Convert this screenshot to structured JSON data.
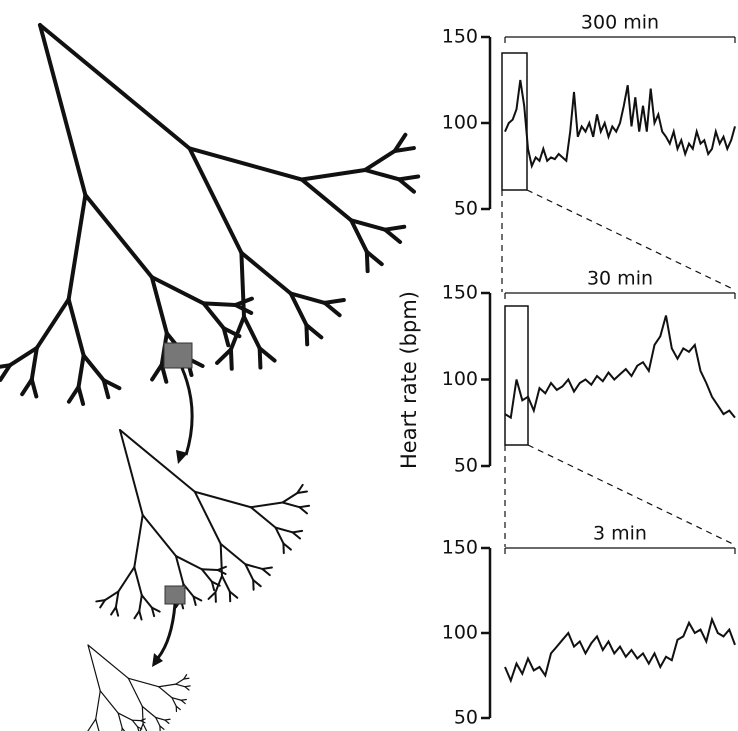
{
  "chart_data": [
    {
      "type": "line",
      "title": "300 min",
      "color": "#111",
      "x": [
        0,
        5,
        10,
        15,
        20,
        25,
        30,
        35,
        40,
        45,
        50,
        55,
        60,
        65,
        70,
        75,
        80,
        85,
        90,
        95,
        100,
        105,
        110,
        115,
        120,
        125,
        130,
        135,
        140,
        145,
        150,
        155,
        160,
        165,
        170,
        175,
        180,
        185,
        190,
        195,
        200,
        205,
        210,
        215,
        220,
        225,
        230,
        235,
        240,
        245,
        250,
        255,
        260,
        265,
        270,
        275,
        280,
        285,
        290,
        295,
        300
      ],
      "values": [
        95,
        100,
        102,
        108,
        125,
        110,
        85,
        75,
        80,
        78,
        85,
        78,
        80,
        79,
        82,
        80,
        78,
        95,
        118,
        92,
        98,
        95,
        100,
        92,
        105,
        95,
        100,
        92,
        98,
        95,
        100,
        110,
        122,
        98,
        115,
        95,
        110,
        95,
        120,
        100,
        105,
        95,
        92,
        88,
        95,
        85,
        90,
        82,
        88,
        85,
        95,
        88,
        90,
        82,
        85,
        95,
        88,
        92,
        85,
        90,
        98
      ],
      "xlim": [
        0,
        300
      ],
      "ylim": [
        50,
        150
      ],
      "yticks": [
        50,
        100,
        150
      ]
    },
    {
      "type": "line",
      "title": "30 min",
      "ylabel": "Heart rate (bpm)",
      "color": "#111",
      "x": [
        0,
        0.75,
        1.5,
        2.25,
        3,
        3.75,
        4.5,
        5.25,
        6,
        6.75,
        7.5,
        8.25,
        9,
        9.75,
        10.5,
        11.25,
        12,
        12.75,
        13.5,
        14.25,
        15,
        15.75,
        16.5,
        17.25,
        18,
        18.75,
        19.5,
        20.25,
        21,
        21.75,
        22.5,
        23.25,
        24,
        24.75,
        25.5,
        26.25,
        27,
        27.75,
        28.5,
        29.25,
        30
      ],
      "values": [
        80,
        78,
        100,
        88,
        90,
        82,
        95,
        92,
        98,
        94,
        96,
        100,
        93,
        98,
        100,
        97,
        102,
        99,
        104,
        100,
        103,
        106,
        102,
        108,
        110,
        105,
        120,
        125,
        137,
        118,
        112,
        118,
        116,
        120,
        105,
        98,
        90,
        85,
        80,
        82,
        78
      ],
      "xlim": [
        0,
        30
      ],
      "ylim": [
        50,
        150
      ],
      "yticks": [
        50,
        100,
        150
      ]
    },
    {
      "type": "line",
      "title": "3 min",
      "color": "#111",
      "x": [
        0,
        0.075,
        0.15,
        0.225,
        0.3,
        0.375,
        0.45,
        0.525,
        0.6,
        0.675,
        0.75,
        0.825,
        0.9,
        0.975,
        1.05,
        1.125,
        1.2,
        1.275,
        1.35,
        1.425,
        1.5,
        1.575,
        1.65,
        1.725,
        1.8,
        1.875,
        1.95,
        2.025,
        2.1,
        2.175,
        2.25,
        2.325,
        2.4,
        2.475,
        2.55,
        2.625,
        2.7,
        2.775,
        2.85,
        2.925,
        3
      ],
      "values": [
        80,
        72,
        82,
        76,
        85,
        78,
        80,
        75,
        88,
        92,
        96,
        100,
        92,
        95,
        88,
        94,
        98,
        90,
        95,
        88,
        92,
        86,
        90,
        85,
        88,
        82,
        88,
        80,
        86,
        84,
        96,
        98,
        106,
        100,
        102,
        95,
        108,
        100,
        98,
        102,
        93
      ],
      "xlim": [
        0,
        3
      ],
      "ylim": [
        50,
        150
      ],
      "yticks": [
        50,
        100,
        150
      ]
    }
  ]
}
